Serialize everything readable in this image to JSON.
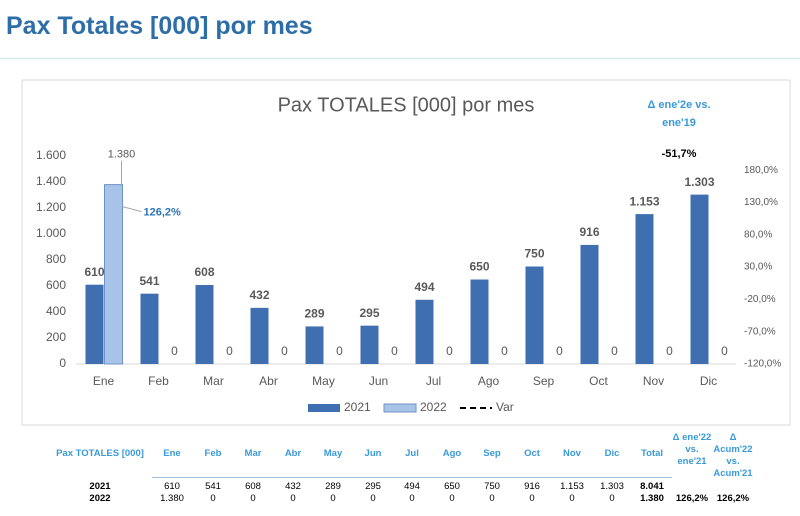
{
  "page_title": "Pax Totales [000] por mes",
  "chart_data": {
    "type": "bar",
    "title": "Pax TOTALES [000] por mes",
    "categories": [
      "Ene",
      "Feb",
      "Mar",
      "Abr",
      "May",
      "Jun",
      "Jul",
      "Ago",
      "Sep",
      "Oct",
      "Nov",
      "Dic"
    ],
    "series": [
      {
        "name": "2021",
        "color": "#3f6fb0",
        "values": [
          610,
          541,
          608,
          432,
          289,
          295,
          494,
          650,
          750,
          916,
          1153,
          1303
        ],
        "value_labels": [
          "610",
          "541",
          "608",
          "432",
          "289",
          "295",
          "494",
          "650",
          "750",
          "916",
          "1.153",
          "1.303"
        ]
      },
      {
        "name": "2022",
        "color": "#a7c4e8",
        "values": [
          1380,
          0,
          0,
          0,
          0,
          0,
          0,
          0,
          0,
          0,
          0,
          0
        ],
        "value_labels": [
          "1.380",
          "0",
          "0",
          "0",
          "0",
          "0",
          "0",
          "0",
          "0",
          "0",
          "0",
          "0"
        ]
      },
      {
        "name": "Var",
        "color": "#000000",
        "axis": "y2",
        "values": [
          null,
          null,
          null,
          null,
          null,
          null,
          null,
          null,
          null,
          null,
          null,
          null
        ]
      }
    ],
    "ylim": [
      0,
      1600
    ],
    "yticks": [
      0,
      200,
      400,
      600,
      800,
      {
        "value": 1000,
        "label": "1.000"
      },
      {
        "value": 1200,
        "label": "1.200"
      },
      {
        "value": 1400,
        "label": "1.400"
      },
      {
        "value": 1600,
        "label": "1.600"
      }
    ],
    "y2lim": [
      -120,
      202
    ],
    "y2ticks": [
      {
        "value": -120,
        "label": "-120,0%"
      },
      {
        "value": -70,
        "label": "-70,0%"
      },
      {
        "value": -20,
        "label": "-20,0%"
      },
      {
        "value": 30,
        "label": "30,0%"
      },
      {
        "value": 80,
        "label": "80,0%"
      },
      {
        "value": 130,
        "label": "130,0%"
      },
      {
        "value": 180,
        "label": "180,0%"
      }
    ],
    "legend": "bottom",
    "annotations": [
      "126,2%",
      "Δ ene'2e vs. ene'19",
      "-51,7%"
    ]
  },
  "table": {
    "header": [
      "Pax TOTALES [000]",
      "Ene",
      "Feb",
      "Mar",
      "Abr",
      "May",
      "Jun",
      "Jul",
      "Ago",
      "Sep",
      "Oct",
      "Nov",
      "Dic",
      "Total",
      "Δ ene'22 vs. ene'21",
      "Δ Acum'22 vs. Acum'21"
    ],
    "rows": [
      [
        "2021",
        "610",
        "541",
        "608",
        "432",
        "289",
        "295",
        "494",
        "650",
        "750",
        "916",
        "1.153",
        "1.303",
        "8.041"
      ],
      [
        "2022",
        "1.380",
        "0",
        "0",
        "0",
        "0",
        "0",
        "0",
        "0",
        "0",
        "0",
        "0",
        "0",
        "1.380",
        "126,2%",
        "126,2%"
      ]
    ]
  }
}
